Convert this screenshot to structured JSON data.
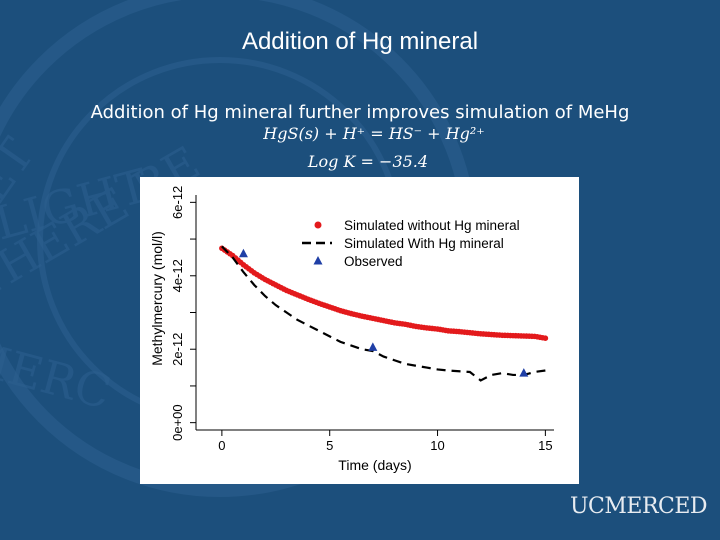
{
  "slide": {
    "title": "Addition of Hg mineral",
    "subtitle": "Addition of Hg mineral further improves simulation of MeHg",
    "equation_1": "HgS(s) + H⁺ = HS⁻ + Hg²⁺",
    "equation_2": "Log K = −35.4",
    "logo_text": "UCMERCED",
    "background_color": "#1c4f7c"
  },
  "chart_data": {
    "type": "line",
    "xlabel": "Time (days)",
    "ylabel": "Methylmercury (mol/l)",
    "xlim": [
      -1.2,
      15.4
    ],
    "ylim": [
      -2e-13,
      6.2e-12
    ],
    "x_ticks": [
      0,
      5,
      10,
      15
    ],
    "x_tick_labels": [
      "0",
      "5",
      "10",
      "15"
    ],
    "y_ticks": [
      0,
      2e-12,
      4e-12,
      6e-12
    ],
    "y_tick_labels": [
      "0e+00",
      "2e-12",
      "4e-12",
      "6e-12"
    ],
    "legend_position": "top-right",
    "series": [
      {
        "name": "Simulated without Hg mineral",
        "style": "points",
        "color": "#e31a1c",
        "x": [
          0,
          0.5,
          1,
          1.5,
          2,
          2.5,
          3,
          3.5,
          4,
          4.5,
          5,
          5.5,
          6,
          6.5,
          7,
          7.5,
          8,
          8.5,
          9,
          9.5,
          10,
          10.5,
          11,
          11.5,
          12,
          12.5,
          13,
          13.5,
          14,
          14.5,
          15
        ],
        "y": [
          4.75e-12,
          4.55e-12,
          4.3e-12,
          4.08e-12,
          3.9e-12,
          3.75e-12,
          3.6e-12,
          3.48e-12,
          3.36e-12,
          3.25e-12,
          3.15e-12,
          3.05e-12,
          2.97e-12,
          2.9e-12,
          2.84e-12,
          2.78e-12,
          2.72e-12,
          2.68e-12,
          2.62e-12,
          2.58e-12,
          2.55e-12,
          2.5e-12,
          2.48e-12,
          2.45e-12,
          2.42e-12,
          2.4e-12,
          2.38e-12,
          2.37e-12,
          2.36e-12,
          2.35e-12,
          2.3e-12
        ]
      },
      {
        "name": "Simulated With Hg mineral",
        "style": "dashed",
        "color": "#000000",
        "x": [
          0,
          0.5,
          1,
          1.5,
          2,
          2.5,
          3,
          3.5,
          4,
          4.5,
          5,
          5.5,
          6,
          6.5,
          7,
          7.5,
          8,
          8.5,
          9,
          9.5,
          10,
          10.5,
          11,
          11.5,
          12,
          12.5,
          13,
          13.5,
          14,
          14.5,
          15
        ],
        "y": [
          4.8e-12,
          4.5e-12,
          4.1e-12,
          3.75e-12,
          3.45e-12,
          3.2e-12,
          3e-12,
          2.8e-12,
          2.65e-12,
          2.5e-12,
          2.35e-12,
          2.2e-12,
          2.1e-12,
          2e-12,
          1.95e-12,
          1.8e-12,
          1.7e-12,
          1.6e-12,
          1.55e-12,
          1.5e-12,
          1.45e-12,
          1.42e-12,
          1.4e-12,
          1.38e-12,
          1.15e-12,
          1.3e-12,
          1.35e-12,
          1.3e-12,
          1.3e-12,
          1.38e-12,
          1.42e-12
        ]
      },
      {
        "name": "Observed",
        "style": "triangles",
        "color": "#1f3fa6",
        "x": [
          1,
          7,
          14
        ],
        "y": [
          4.6e-12,
          2.05e-12,
          1.35e-12
        ]
      }
    ]
  }
}
